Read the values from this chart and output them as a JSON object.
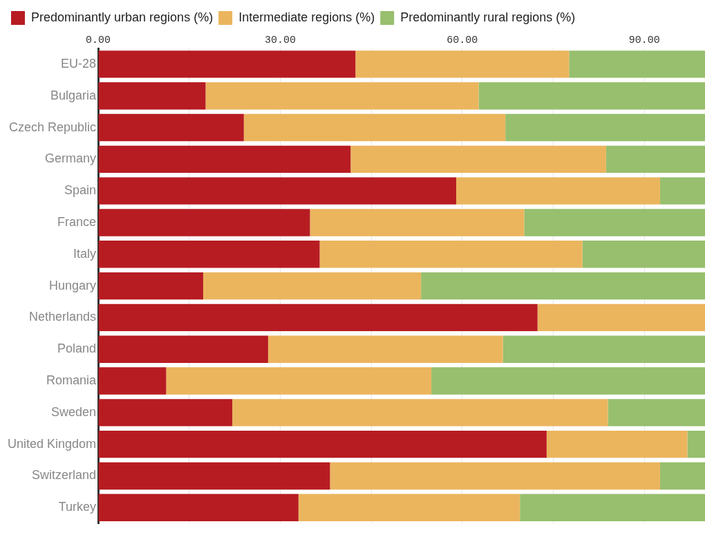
{
  "chart_data": {
    "type": "bar",
    "orientation": "horizontal",
    "stacked": true,
    "categories": [
      "EU-28",
      "Bulgaria",
      "Czech Republic",
      "Germany",
      "Spain",
      "France",
      "Italy",
      "Hungary",
      "Netherlands",
      "Poland",
      "Romania",
      "Sweden",
      "United Kingdom",
      "Switzerland",
      "Turkey"
    ],
    "series": [
      {
        "name": "Predominantly urban regions (%)",
        "color": "#b71c22",
        "values": [
          42.4,
          17.7,
          24.0,
          41.6,
          59.0,
          34.9,
          36.5,
          17.3,
          72.4,
          28.0,
          11.2,
          22.1,
          73.9,
          38.2,
          33.0
        ]
      },
      {
        "name": "Intermediate regions (%)",
        "color": "#ebb55e",
        "values": [
          35.2,
          45.0,
          43.1,
          42.1,
          33.6,
          35.3,
          43.3,
          35.9,
          27.6,
          38.7,
          43.7,
          61.9,
          23.2,
          54.4,
          36.5
        ]
      },
      {
        "name": "Predominantly rural regions (%)",
        "color": "#97bf6e",
        "values": [
          22.4,
          37.3,
          32.9,
          16.3,
          7.4,
          29.8,
          20.2,
          46.8,
          0,
          33.3,
          45.1,
          16.0,
          2.9,
          7.4,
          30.5
        ]
      }
    ],
    "xlim": [
      0,
      100
    ],
    "xticks": [
      {
        "value": 0,
        "label": "0.00"
      },
      {
        "value": 15,
        "label": null
      },
      {
        "value": 30,
        "label": "30.00"
      },
      {
        "value": 45,
        "label": null
      },
      {
        "value": 60,
        "label": "60.00"
      },
      {
        "value": 75,
        "label": null
      },
      {
        "value": 90,
        "label": "90.00"
      }
    ],
    "grid": "x",
    "legend": "top left"
  }
}
